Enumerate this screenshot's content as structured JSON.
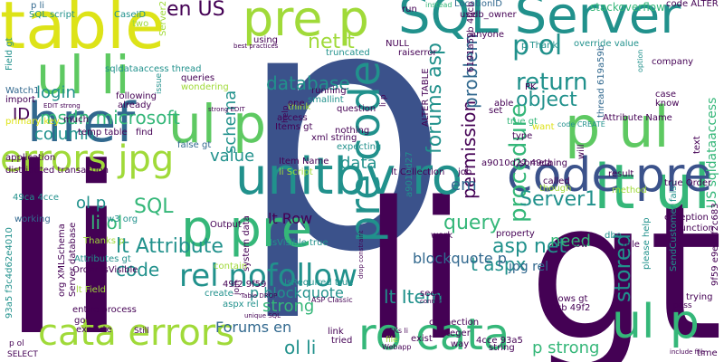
{
  "palette": {
    "purple": "#440154",
    "darkblue": "#3b528b",
    "blue": "#31688e",
    "teal": "#21918c",
    "green": "#35b779",
    "lightgreen": "#5ec962",
    "lime": "#a0da39",
    "yellow": "#dde318"
  },
  "words": [
    {
      "text": "p",
      "color": "#3b528b"
    },
    {
      "text": "li",
      "color": "#440154"
    },
    {
      "text": "li gt",
      "color": "#440154"
    },
    {
      "text": "table",
      "color": "#dde318"
    },
    {
      "text": "SQL Server",
      "color": "#21918c"
    },
    {
      "text": "pre p",
      "color": "#a0da39"
    },
    {
      "text": "ul li",
      "color": "#5ec962"
    },
    {
      "text": "href",
      "color": "#31688e"
    },
    {
      "text": "errors jpg",
      "color": "#a0da39"
    },
    {
      "text": "ul p",
      "color": "#5ec962"
    },
    {
      "text": "lt ul",
      "color": "#35b779"
    },
    {
      "text": "p ul",
      "color": "#5ec962"
    },
    {
      "text": "code pre",
      "color": "#3b528b"
    },
    {
      "text": "unitbv ro",
      "color": "#21918c"
    },
    {
      "text": "p pre",
      "color": "#35b779"
    },
    {
      "text": "pre code",
      "color": "#21918c"
    },
    {
      "text": "ro cata",
      "color": "#35b779"
    },
    {
      "text": "cata errors",
      "color": "#a0da39"
    },
    {
      "text": "ul p",
      "color": "#35b779"
    },
    {
      "text": "rel nofollow",
      "color": "#21918c"
    },
    {
      "text": "msdn microsoft",
      "color": "#35b779"
    },
    {
      "text": "en US",
      "color": "#440154"
    },
    {
      "text": "net t",
      "color": "#a0da39"
    },
    {
      "text": "p ol",
      "color": "#21918c"
    },
    {
      "text": "database",
      "color": "#21918c"
    },
    {
      "text": "forums asp",
      "color": "#21918c"
    },
    {
      "text": "return",
      "color": "#21918c"
    },
    {
      "text": "object",
      "color": "#21918c"
    },
    {
      "text": "procedure",
      "color": "#35b779"
    },
    {
      "text": "stored",
      "color": "#21918c"
    },
    {
      "text": "Server1",
      "color": "#21918c"
    },
    {
      "text": "query",
      "color": "#35b779"
    },
    {
      "text": "permission",
      "color": "#440154"
    },
    {
      "text": "asp net",
      "color": "#21918c"
    },
    {
      "text": "lt Attribute",
      "color": "#21918c"
    },
    {
      "text": "SQL",
      "color": "#35b779"
    },
    {
      "text": "login",
      "color": "#21918c"
    },
    {
      "text": "column",
      "color": "#21918c"
    },
    {
      "text": "ID",
      "color": "#440154"
    },
    {
      "text": "value",
      "color": "#21918c"
    },
    {
      "text": "data",
      "color": "#21918c"
    },
    {
      "text": "ol p",
      "color": "#21918c"
    },
    {
      "text": "li ol",
      "color": "#35b779"
    },
    {
      "text": "code",
      "color": "#21918c"
    },
    {
      "text": "strong",
      "color": "#35b779"
    },
    {
      "text": "Forums en",
      "color": "#31688e"
    },
    {
      "text": "ol li",
      "color": "#21918c"
    },
    {
      "text": "lt Item",
      "color": "#21918c"
    },
    {
      "text": "t aspx",
      "color": "#21918c"
    },
    {
      "text": "need",
      "color": "#35b779"
    },
    {
      "text": "p strong",
      "color": "#35b779"
    },
    {
      "text": "lt Row",
      "color": "#440154"
    },
    {
      "text": "p blockquote",
      "color": "#21918c"
    },
    {
      "text": "blockquote p",
      "color": "#31688e"
    },
    {
      "text": "jpg rel",
      "color": "#31688e"
    },
    {
      "text": "schema",
      "color": "#21918c"
    },
    {
      "text": "problem",
      "color": "#31688e"
    },
    {
      "text": "US sqldataaccess",
      "color": "#35b779"
    },
    {
      "text": "em",
      "color": "#31688e"
    },
    {
      "text": "using",
      "color": "#440154"
    },
    {
      "text": "Server2",
      "color": "#a0da39"
    },
    {
      "text": "stackoverflow",
      "color": "#35b779"
    },
    {
      "text": "code ALTER",
      "color": "#440154"
    },
    {
      "text": "CaseID",
      "color": "#21918c"
    },
    {
      "text": "SQL script",
      "color": "#21918c"
    },
    {
      "text": "sqldataaccess thread",
      "color": "#21918c"
    },
    {
      "text": "truncated",
      "color": "#21918c"
    },
    {
      "text": "raiserror",
      "color": "#440154"
    },
    {
      "text": "run",
      "color": "#440154"
    },
    {
      "text": "LocationID",
      "color": "#31688e"
    },
    {
      "text": "use",
      "color": "#440154"
    },
    {
      "text": "db_owner",
      "color": "#440154"
    },
    {
      "text": "anyone",
      "color": "#440154"
    },
    {
      "text": "instead",
      "color": "#35b779"
    },
    {
      "text": "p li",
      "color": "#31688e"
    },
    {
      "text": "two",
      "color": "#a0da39"
    },
    {
      "text": "import",
      "color": "#440154"
    },
    {
      "text": "Watch1",
      "color": "#31688e"
    },
    {
      "text": "Field gt",
      "color": "#21918c"
    },
    {
      "text": "queries",
      "color": "#440154"
    },
    {
      "text": "wondering",
      "color": "#a0da39"
    },
    {
      "text": "issue",
      "color": "#21918c"
    },
    {
      "text": "following",
      "color": "#440154"
    },
    {
      "text": "already",
      "color": "#440154"
    },
    {
      "text": "primary key",
      "color": "#dde318"
    },
    {
      "text": "temp table",
      "color": "#440154"
    },
    {
      "text": "find",
      "color": "#440154"
    },
    {
      "text": "application",
      "color": "#440154"
    },
    {
      "text": "distributed transaction",
      "color": "#440154"
    },
    {
      "text": "49ca 4cce",
      "color": "#21918c"
    },
    {
      "text": "false gt",
      "color": "#31688e"
    },
    {
      "text": "think",
      "color": "#a0da39"
    },
    {
      "text": "access",
      "color": "#440154"
    },
    {
      "text": "Items gt",
      "color": "#440154"
    },
    {
      "text": "running",
      "color": "#440154"
    },
    {
      "text": "smallint",
      "color": "#21918c"
    },
    {
      "text": "question",
      "color": "#440154"
    },
    {
      "text": "nothing",
      "color": "#440154"
    },
    {
      "text": "xml string",
      "color": "#440154"
    },
    {
      "text": "expecting",
      "color": "#21918c"
    },
    {
      "text": "Item Name",
      "color": "#440154"
    },
    {
      "text": "li Script",
      "color": "#a0da39"
    },
    {
      "text": "lt Collection",
      "color": "#440154"
    },
    {
      "text": "a9010d27",
      "color": "#21918c"
    },
    {
      "text": "a9010d27 49ca",
      "color": "#440154"
    },
    {
      "text": "PK",
      "color": "#440154"
    },
    {
      "text": "true gt",
      "color": "#35b779"
    },
    {
      "text": "ALTER TABLE",
      "color": "#440154"
    },
    {
      "text": "set",
      "color": "#440154"
    },
    {
      "text": "type",
      "color": "#440154"
    },
    {
      "text": "able",
      "color": "#440154"
    },
    {
      "text": "thread 619a59b",
      "color": "#31688e"
    },
    {
      "text": "company",
      "color": "#440154"
    },
    {
      "text": "case",
      "color": "#440154"
    },
    {
      "text": "know",
      "color": "#440154"
    },
    {
      "text": "Attribute Name",
      "color": "#440154"
    },
    {
      "text": "override value",
      "color": "#21918c"
    },
    {
      "text": "p Thank",
      "color": "#21918c"
    },
    {
      "text": "option",
      "color": "#21918c"
    },
    {
      "text": "NULL",
      "color": "#440154"
    },
    {
      "text": "Output",
      "color": "#440154"
    },
    {
      "text": "contain",
      "color": "#a0da39"
    },
    {
      "text": "IsVisible true",
      "color": "#21918c"
    },
    {
      "text": "IsRequired true",
      "color": "#21918c"
    },
    {
      "text": "49f2 9f59",
      "color": "#440154"
    },
    {
      "text": "lt Field",
      "color": "#a0da39"
    },
    {
      "text": "entire process",
      "color": "#440154"
    },
    {
      "text": "got",
      "color": "#440154"
    },
    {
      "text": "Thanks p",
      "color": "#a0da39"
    },
    {
      "text": "Attributes gt",
      "color": "#21918c"
    },
    {
      "text": "Order IsVisible",
      "color": "#440154"
    },
    {
      "text": "org XMLSchema",
      "color": "#440154"
    },
    {
      "text": "Server database",
      "color": "#440154"
    },
    {
      "text": "93a5 f3c4d62e4010",
      "color": "#21918c"
    },
    {
      "text": "execute",
      "color": "#440154"
    },
    {
      "text": "SELECT",
      "color": "#440154"
    },
    {
      "text": "p ol",
      "color": "#440154"
    },
    {
      "text": "working",
      "color": "#31688e"
    },
    {
      "text": "w3 org",
      "color": "#21918c"
    },
    {
      "text": "system data",
      "color": "#440154"
    },
    {
      "text": "join",
      "color": "#440154"
    },
    {
      "text": "create",
      "color": "#21918c"
    },
    {
      "text": "aspx rel",
      "color": "#21918c"
    },
    {
      "text": "connection",
      "color": "#440154"
    },
    {
      "text": "integer",
      "color": "#440154"
    },
    {
      "text": "4cce 93a5",
      "color": "#440154"
    },
    {
      "text": "string",
      "color": "#440154"
    },
    {
      "text": "way",
      "color": "#440154"
    },
    {
      "text": "exist",
      "color": "#440154"
    },
    {
      "text": "link",
      "color": "#440154"
    },
    {
      "text": "tried",
      "color": "#440154"
    },
    {
      "text": "seen",
      "color": "#440154"
    },
    {
      "text": "Rows gt",
      "color": "#440154"
    },
    {
      "text": "40cb 49f2",
      "color": "#440154"
    },
    {
      "text": "exception",
      "color": "#440154"
    },
    {
      "text": "function",
      "color": "#440154"
    },
    {
      "text": "trying",
      "color": "#440154"
    },
    {
      "text": "time",
      "color": "#440154"
    },
    {
      "text": "role",
      "color": "#440154"
    },
    {
      "text": "dbo",
      "color": "#21918c"
    },
    {
      "text": "please help",
      "color": "#21918c"
    },
    {
      "text": "Now",
      "color": "#440154"
    },
    {
      "text": "SendCustomer false",
      "color": "#21918c"
    },
    {
      "text": "9f59 e9e1bf2c683",
      "color": "#440154"
    },
    {
      "text": "result",
      "color": "#440154"
    },
    {
      "text": "true Order",
      "color": "#440154"
    },
    {
      "text": "called",
      "color": "#440154"
    },
    {
      "text": "method",
      "color": "#a0da39"
    },
    {
      "text": "though",
      "color": "#a0da39"
    },
    {
      "text": "something",
      "color": "#440154"
    },
    {
      "text": "job",
      "color": "#440154"
    },
    {
      "text": "work",
      "color": "#440154"
    },
    {
      "text": "will",
      "color": "#440154"
    },
    {
      "text": "want",
      "color": "#dde318"
    },
    {
      "text": "text",
      "color": "#440154"
    },
    {
      "text": "Still",
      "color": "#440154"
    },
    {
      "text": "one",
      "color": "#440154"
    },
    {
      "text": "help",
      "color": "#440154"
    },
    {
      "text": "much",
      "color": "#440154"
    },
    {
      "text": "property",
      "color": "#440154"
    },
    {
      "text": "code CREATE",
      "color": "#21918c"
    },
    {
      "text": "6191a59b 40cb",
      "color": "#440154"
    },
    {
      "text": "li p",
      "color": "#440154"
    },
    {
      "text": "Webapp",
      "color": "#440154"
    },
    {
      "text": "ASP Classic",
      "color": "#440154"
    },
    {
      "text": "Table DROP",
      "color": "#440154"
    },
    {
      "text": "unique SQL",
      "color": "#440154"
    },
    {
      "text": "drop constraint",
      "color": "#440154"
    },
    {
      "text": "EDIT strong",
      "color": "#440154"
    },
    {
      "text": "strong EDIT",
      "color": "#440154"
    },
    {
      "text": "best practices",
      "color": "#440154"
    },
    {
      "text": "include file",
      "color": "#440154"
    },
    {
      "text": "pass",
      "color": "#440154"
    },
    {
      "text": "connect",
      "color": "#440154"
    },
    {
      "text": "FKs li",
      "color": "#440154"
    },
    {
      "text": "file",
      "color": "#a0da39"
    }
  ]
}
